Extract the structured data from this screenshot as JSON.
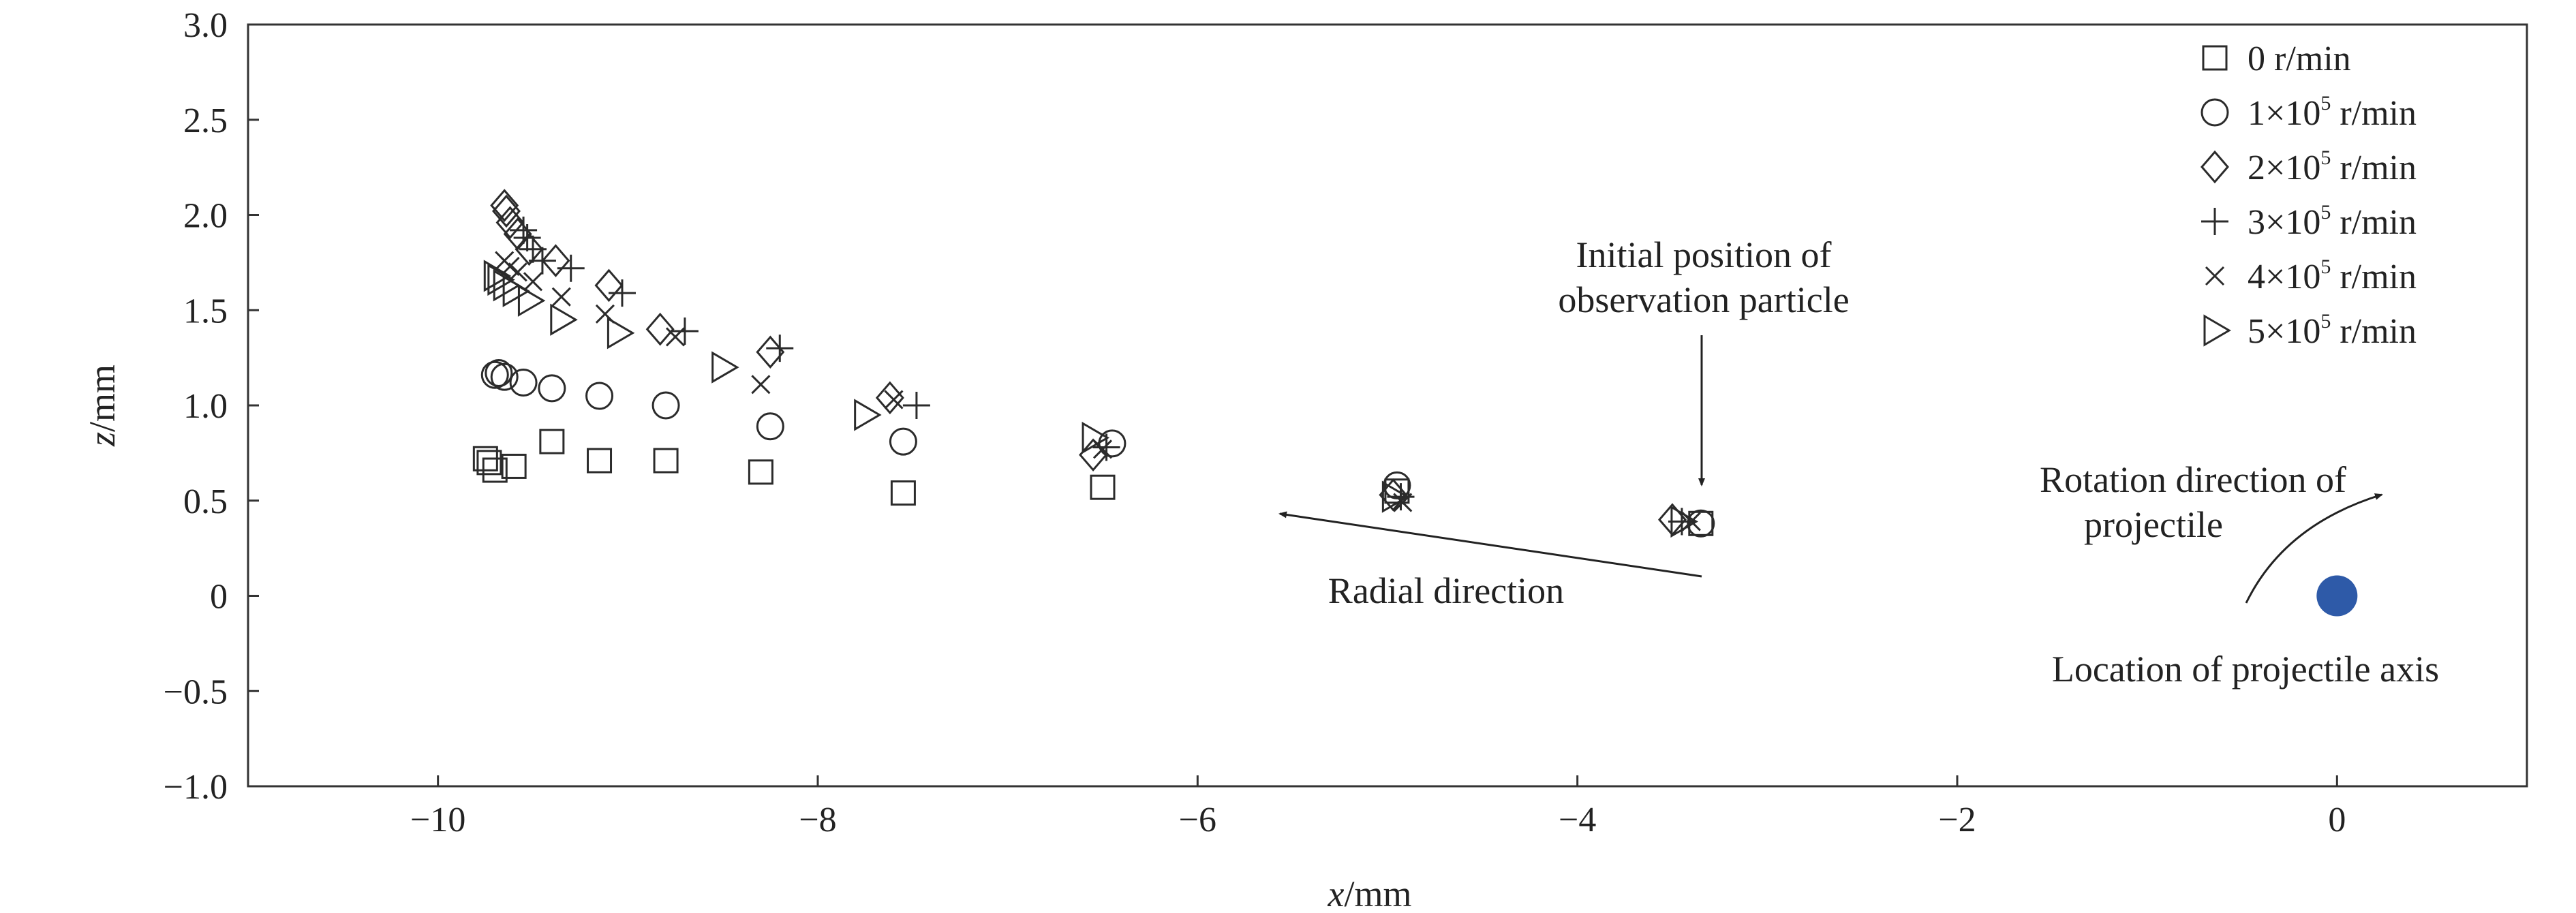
{
  "chart_data": {
    "type": "scatter",
    "xlabel": {
      "var": "x",
      "unit": "/mm"
    },
    "ylabel": {
      "var": "z",
      "unit": "/mm"
    },
    "xlim": [
      -11.0,
      1.0
    ],
    "ylim": [
      -1.0,
      3.0
    ],
    "xticks": [
      -10,
      -8,
      -6,
      -4,
      -2,
      0
    ],
    "xtick_labels": [
      "−10",
      "−8",
      "−6",
      "−4",
      "−2",
      "0"
    ],
    "yticks": [
      3.0,
      2.5,
      2.0,
      1.5,
      1.0,
      0.5,
      0,
      -0.5,
      -1.0
    ],
    "ytick_labels": [
      "3.0",
      "2.5",
      "2.0",
      "1.5",
      "1.0",
      "0.5",
      "0",
      "−0.5",
      "−1.0"
    ],
    "grid": false,
    "legend_position": "top-right",
    "series": [
      {
        "name": "0 r/min",
        "label_parts": [
          "0 r/min"
        ],
        "marker": "square",
        "x": [
          -3.35,
          -4.95,
          -6.5,
          -7.55,
          -8.3,
          -8.8,
          -9.15,
          -9.4,
          -9.6,
          -9.7,
          -9.73,
          -9.75
        ],
        "y": [
          0.38,
          0.55,
          0.57,
          0.54,
          0.65,
          0.71,
          0.71,
          0.81,
          0.68,
          0.66,
          0.7,
          0.72
        ]
      },
      {
        "name": "1×10⁵ r/min",
        "label_parts": [
          "1×10",
          "5",
          " r/min"
        ],
        "marker": "circle",
        "x": [
          -3.35,
          -4.95,
          -6.45,
          -7.55,
          -8.25,
          -8.8,
          -9.15,
          -9.4,
          -9.55,
          -9.65,
          -9.68,
          -9.7
        ],
        "y": [
          0.38,
          0.58,
          0.8,
          0.81,
          0.89,
          1.0,
          1.05,
          1.09,
          1.12,
          1.15,
          1.17,
          1.16
        ]
      },
      {
        "name": "2×10⁵ r/min",
        "label_parts": [
          "2×10",
          "5",
          " r/min"
        ],
        "marker": "diamond",
        "x": [
          -3.5,
          -4.97,
          -6.55,
          -7.62,
          -8.25,
          -8.83,
          -9.1,
          -9.38,
          -9.52,
          -9.58,
          -9.62,
          -9.64,
          -9.65
        ],
        "y": [
          0.4,
          0.53,
          0.74,
          1.04,
          1.28,
          1.4,
          1.63,
          1.76,
          1.82,
          1.9,
          1.96,
          2.02,
          2.05
        ]
      },
      {
        "name": "3×10⁵ r/min",
        "label_parts": [
          "3×10",
          "5",
          " r/min"
        ],
        "marker": "plus",
        "x": [
          -3.45,
          -4.93,
          -6.48,
          -7.48,
          -8.2,
          -8.7,
          -9.03,
          -9.3,
          -9.45,
          -9.5,
          -9.53,
          -9.55
        ],
        "y": [
          0.39,
          0.52,
          0.78,
          1.0,
          1.3,
          1.39,
          1.59,
          1.72,
          1.76,
          1.82,
          1.88,
          1.92
        ]
      },
      {
        "name": "4×10⁵ r/min",
        "label_parts": [
          "4×10",
          "5",
          " r/min"
        ],
        "marker": "x",
        "x": [
          -3.4,
          -4.92,
          -6.5,
          -7.6,
          -8.3,
          -8.75,
          -9.12,
          -9.35,
          -9.5,
          -9.58,
          -9.62,
          -9.65
        ],
        "y": [
          0.39,
          0.49,
          0.77,
          1.03,
          1.11,
          1.36,
          1.48,
          1.57,
          1.65,
          1.7,
          1.73,
          1.76
        ]
      },
      {
        "name": "5×10⁵ r/min",
        "label_parts": [
          "5×10",
          "5",
          " r/min"
        ],
        "marker": "triangle-right",
        "x": [
          -3.45,
          -4.97,
          -6.55,
          -7.75,
          -8.5,
          -9.05,
          -9.35,
          -9.52,
          -9.6,
          -9.65,
          -9.68,
          -9.7
        ],
        "y": [
          0.39,
          0.52,
          0.83,
          0.95,
          1.2,
          1.38,
          1.45,
          1.55,
          1.6,
          1.63,
          1.66,
          1.68
        ]
      }
    ],
    "axis_point": {
      "x": 0,
      "y": 0,
      "color": "#2e5aa8"
    },
    "annotations": {
      "initial_position": {
        "lines": [
          "Initial position of",
          "observation particle"
        ]
      },
      "radial_direction": {
        "text": "Radial direction"
      },
      "rotation_direction": {
        "lines": [
          "Rotation direction of",
          "projectile"
        ]
      },
      "axis_location": {
        "text": "Location of projectile axis"
      }
    }
  }
}
